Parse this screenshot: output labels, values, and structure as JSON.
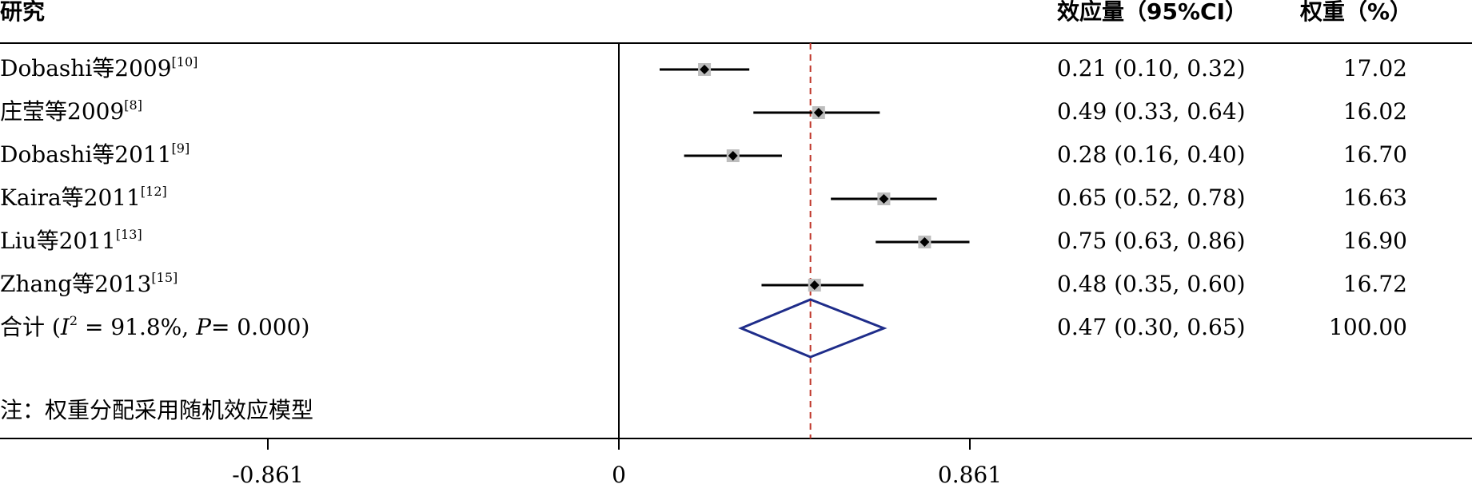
{
  "chart_data": {
    "type": "forest",
    "headers": {
      "study": "研究",
      "effect": "效应量（95%CI）",
      "weight": "权重（%）"
    },
    "studies": [
      {
        "name": "Dobashi等2009",
        "ref": "[10]",
        "es": 0.21,
        "lo": 0.1,
        "hi": 0.32,
        "ci_text": "0.21 (0.10, 0.32)",
        "weight": 17.02,
        "weight_text": "17.02"
      },
      {
        "name": "庄莹等2009",
        "ref": "[8]",
        "es": 0.49,
        "lo": 0.33,
        "hi": 0.64,
        "ci_text": "0.49 (0.33, 0.64)",
        "weight": 16.02,
        "weight_text": "16.02"
      },
      {
        "name": "Dobashi等2011",
        "ref": "[9]",
        "es": 0.28,
        "lo": 0.16,
        "hi": 0.4,
        "ci_text": "0.28 (0.16, 0.40)",
        "weight": 16.7,
        "weight_text": "16.70"
      },
      {
        "name": "Kaira等2011",
        "ref": "[12]",
        "es": 0.65,
        "lo": 0.52,
        "hi": 0.78,
        "ci_text": "0.65 (0.52, 0.78)",
        "weight": 16.63,
        "weight_text": "16.63"
      },
      {
        "name": "Liu等2011",
        "ref": "[13]",
        "es": 0.75,
        "lo": 0.63,
        "hi": 0.86,
        "ci_text": "0.75 (0.63, 0.86)",
        "weight": 16.9,
        "weight_text": "16.90"
      },
      {
        "name": "Zhang等2013",
        "ref": "[15]",
        "es": 0.48,
        "lo": 0.35,
        "hi": 0.6,
        "ci_text": "0.48 (0.35, 0.60)",
        "weight": 16.72,
        "weight_text": "16.72"
      }
    ],
    "overall": {
      "label_prefix": "合计  (",
      "i2_symbol": "I",
      "i2_sup": "2",
      "i2_text": " = 91.8%,  ",
      "p_symbol": "P",
      "p_text": "= 0.000)",
      "es": 0.47,
      "lo": 0.3,
      "hi": 0.65,
      "ci_text": "0.47 (0.30, 0.65)",
      "weight_text": "100.00"
    },
    "note": "注：权重分配采用随机效应模型",
    "x_ticks": [
      {
        "value": -0.861,
        "label": "-0.861"
      },
      {
        "value": 0,
        "label": "0"
      },
      {
        "value": 0.861,
        "label": "0.861"
      }
    ],
    "xlim": [
      -1.5,
      2.0
    ],
    "colors": {
      "ci_line": "#000000",
      "weight_box": "#bdbdbd",
      "point": "#000000",
      "overall_line": "#c0392b",
      "diamond": "#1f2d8a"
    }
  }
}
